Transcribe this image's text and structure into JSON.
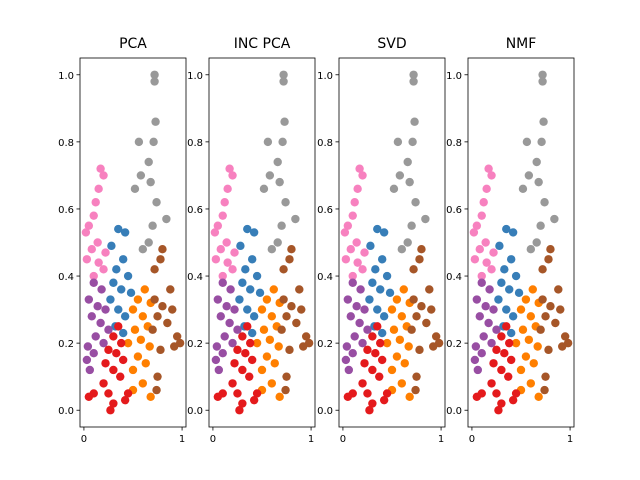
{
  "chart_data": [
    {
      "type": "scatter",
      "title": "PCA",
      "xlim": [
        -0.04,
        1.04
      ],
      "ylim": [
        -0.05,
        1.05
      ],
      "xticks": [
        0,
        1
      ],
      "yticks": [
        {
          "value": 0,
          "label": "0.0"
        },
        0.2,
        0.4,
        0.6,
        0.8,
        {
          "value": 1,
          "label": "1.0"
        }
      ],
      "series": [
        {
          "color": "#999999",
          "x": [
            0.72,
            0.72,
            0.73,
            0.56,
            0.71,
            0.66,
            0.58,
            0.68,
            0.52,
            0.74,
            0.7,
            0.84,
            0.66,
            0.6
          ],
          "y": [
            1.0,
            0.98,
            0.86,
            0.8,
            0.8,
            0.74,
            0.7,
            0.68,
            0.66,
            0.62,
            0.55,
            0.57,
            0.5,
            0.48
          ]
        },
        {
          "color": "#f781bf",
          "x": [
            0.17,
            0.2,
            0.15,
            0.12,
            0.1,
            0.05,
            0.02,
            0.14,
            0.08,
            0.03,
            0.15,
            0.2,
            0.1,
            0.22
          ],
          "y": [
            0.72,
            0.7,
            0.66,
            0.62,
            0.58,
            0.55,
            0.53,
            0.5,
            0.48,
            0.45,
            0.44,
            0.42,
            0.4,
            0.47
          ]
        },
        {
          "color": "#377eb8",
          "x": [
            0.35,
            0.42,
            0.28,
            0.4,
            0.33,
            0.45,
            0.3,
            0.38,
            0.48,
            0.27,
            0.35,
            0.42,
            0.32,
            0.4
          ],
          "y": [
            0.54,
            0.53,
            0.49,
            0.45,
            0.42,
            0.4,
            0.38,
            0.36,
            0.35,
            0.33,
            0.3,
            0.28,
            0.25,
            0.23
          ]
        },
        {
          "color": "#984ea3",
          "x": [
            0.1,
            0.18,
            0.05,
            0.14,
            0.22,
            0.08,
            0.17,
            0.25,
            0.12,
            0.04,
            0.2,
            0.1,
            0.03,
            0.06
          ],
          "y": [
            0.38,
            0.36,
            0.33,
            0.31,
            0.3,
            0.28,
            0.26,
            0.24,
            0.22,
            0.19,
            0.2,
            0.17,
            0.15,
            0.12
          ]
        },
        {
          "color": "#ff7f00",
          "x": [
            0.62,
            0.55,
            0.68,
            0.5,
            0.6,
            0.65,
            0.52,
            0.58,
            0.67,
            0.45,
            0.55,
            0.63,
            0.5,
            0.6,
            0.5,
            0.68
          ],
          "y": [
            0.36,
            0.33,
            0.32,
            0.3,
            0.28,
            0.25,
            0.24,
            0.21,
            0.19,
            0.2,
            0.16,
            0.14,
            0.12,
            0.08,
            0.06,
            0.04
          ]
        },
        {
          "color": "#a65628",
          "x": [
            0.8,
            0.78,
            0.72,
            0.88,
            0.72,
            0.8,
            0.9,
            0.75,
            0.85,
            0.7,
            0.95,
            0.92,
            0.98,
            0.78,
            0.75,
            0.74
          ],
          "y": [
            0.48,
            0.45,
            0.42,
            0.36,
            0.33,
            0.31,
            0.3,
            0.28,
            0.26,
            0.24,
            0.22,
            0.19,
            0.2,
            0.18,
            0.1,
            0.06
          ]
        },
        {
          "color": "#e41a1c",
          "x": [
            0.35,
            0.3,
            0.38,
            0.25,
            0.33,
            0.4,
            0.22,
            0.3,
            0.37,
            0.2,
            0.1,
            0.05,
            0.25,
            0.3,
            0.42,
            0.27,
            0.45
          ],
          "y": [
            0.25,
            0.22,
            0.2,
            0.18,
            0.17,
            0.15,
            0.14,
            0.12,
            0.1,
            0.08,
            0.05,
            0.04,
            0.05,
            0.02,
            0.03,
            0.0,
            0.05
          ]
        }
      ]
    },
    {
      "type": "scatter",
      "title": "INC PCA",
      "xlim": [
        -0.04,
        1.04
      ],
      "ylim": [
        -0.05,
        1.05
      ],
      "xticks": [
        0,
        1
      ],
      "yticks": [
        {
          "value": 0,
          "label": "0.0"
        },
        0.2,
        0.4,
        0.6,
        0.8,
        {
          "value": 1,
          "label": "1.0"
        }
      ],
      "series": [
        {
          "color": "#999999",
          "x": [
            0.72,
            0.72,
            0.73,
            0.56,
            0.71,
            0.66,
            0.58,
            0.68,
            0.52,
            0.74,
            0.7,
            0.84,
            0.66,
            0.6
          ],
          "y": [
            1.0,
            0.98,
            0.86,
            0.8,
            0.8,
            0.74,
            0.7,
            0.68,
            0.66,
            0.62,
            0.55,
            0.57,
            0.5,
            0.48
          ]
        },
        {
          "color": "#f781bf",
          "x": [
            0.17,
            0.2,
            0.15,
            0.12,
            0.1,
            0.05,
            0.02,
            0.14,
            0.08,
            0.03,
            0.15,
            0.2,
            0.1,
            0.22
          ],
          "y": [
            0.72,
            0.7,
            0.66,
            0.62,
            0.58,
            0.55,
            0.53,
            0.5,
            0.48,
            0.45,
            0.44,
            0.42,
            0.4,
            0.47
          ]
        },
        {
          "color": "#377eb8",
          "x": [
            0.35,
            0.42,
            0.28,
            0.4,
            0.33,
            0.45,
            0.3,
            0.38,
            0.48,
            0.27,
            0.35,
            0.42,
            0.32,
            0.4
          ],
          "y": [
            0.54,
            0.53,
            0.49,
            0.45,
            0.42,
            0.4,
            0.38,
            0.36,
            0.35,
            0.33,
            0.3,
            0.28,
            0.25,
            0.23
          ]
        },
        {
          "color": "#984ea3",
          "x": [
            0.1,
            0.18,
            0.05,
            0.14,
            0.22,
            0.08,
            0.17,
            0.25,
            0.12,
            0.04,
            0.2,
            0.1,
            0.03,
            0.06
          ],
          "y": [
            0.38,
            0.36,
            0.33,
            0.31,
            0.3,
            0.28,
            0.26,
            0.24,
            0.22,
            0.19,
            0.2,
            0.17,
            0.15,
            0.12
          ]
        },
        {
          "color": "#ff7f00",
          "x": [
            0.62,
            0.55,
            0.68,
            0.5,
            0.6,
            0.65,
            0.52,
            0.58,
            0.67,
            0.45,
            0.55,
            0.63,
            0.5,
            0.6,
            0.5,
            0.68
          ],
          "y": [
            0.36,
            0.33,
            0.32,
            0.3,
            0.28,
            0.25,
            0.24,
            0.21,
            0.19,
            0.2,
            0.16,
            0.14,
            0.12,
            0.08,
            0.06,
            0.04
          ]
        },
        {
          "color": "#a65628",
          "x": [
            0.8,
            0.78,
            0.72,
            0.88,
            0.72,
            0.8,
            0.9,
            0.75,
            0.85,
            0.7,
            0.95,
            0.92,
            0.98,
            0.78,
            0.75,
            0.74
          ],
          "y": [
            0.48,
            0.45,
            0.42,
            0.36,
            0.33,
            0.31,
            0.3,
            0.28,
            0.26,
            0.24,
            0.22,
            0.19,
            0.2,
            0.18,
            0.1,
            0.06
          ]
        },
        {
          "color": "#e41a1c",
          "x": [
            0.35,
            0.3,
            0.38,
            0.25,
            0.33,
            0.4,
            0.22,
            0.3,
            0.37,
            0.2,
            0.1,
            0.05,
            0.25,
            0.3,
            0.42,
            0.27,
            0.45
          ],
          "y": [
            0.25,
            0.22,
            0.2,
            0.18,
            0.17,
            0.15,
            0.14,
            0.12,
            0.1,
            0.08,
            0.05,
            0.04,
            0.05,
            0.02,
            0.03,
            0.0,
            0.05
          ]
        }
      ]
    },
    {
      "type": "scatter",
      "title": "SVD",
      "xlim": [
        -0.04,
        1.04
      ],
      "ylim": [
        -0.05,
        1.05
      ],
      "xticks": [
        0,
        1
      ],
      "yticks": [
        {
          "value": 0,
          "label": "0.0"
        },
        0.2,
        0.4,
        0.6,
        0.8,
        {
          "value": 1,
          "label": "1.0"
        }
      ],
      "series": [
        {
          "color": "#999999",
          "x": [
            0.72,
            0.72,
            0.73,
            0.56,
            0.71,
            0.66,
            0.58,
            0.68,
            0.52,
            0.74,
            0.7,
            0.84,
            0.66,
            0.6
          ],
          "y": [
            1.0,
            0.98,
            0.86,
            0.8,
            0.8,
            0.74,
            0.7,
            0.68,
            0.66,
            0.62,
            0.55,
            0.57,
            0.5,
            0.48
          ]
        },
        {
          "color": "#f781bf",
          "x": [
            0.17,
            0.2,
            0.15,
            0.12,
            0.1,
            0.05,
            0.02,
            0.14,
            0.08,
            0.03,
            0.15,
            0.2,
            0.1,
            0.22
          ],
          "y": [
            0.72,
            0.7,
            0.66,
            0.62,
            0.58,
            0.55,
            0.53,
            0.5,
            0.48,
            0.45,
            0.44,
            0.42,
            0.4,
            0.47
          ]
        },
        {
          "color": "#377eb8",
          "x": [
            0.35,
            0.42,
            0.28,
            0.4,
            0.33,
            0.45,
            0.3,
            0.38,
            0.48,
            0.27,
            0.35,
            0.42,
            0.32,
            0.4
          ],
          "y": [
            0.54,
            0.53,
            0.49,
            0.45,
            0.42,
            0.4,
            0.38,
            0.36,
            0.35,
            0.33,
            0.3,
            0.28,
            0.25,
            0.23
          ]
        },
        {
          "color": "#984ea3",
          "x": [
            0.1,
            0.18,
            0.05,
            0.14,
            0.22,
            0.08,
            0.17,
            0.25,
            0.12,
            0.04,
            0.2,
            0.1,
            0.03,
            0.06
          ],
          "y": [
            0.38,
            0.36,
            0.33,
            0.31,
            0.3,
            0.28,
            0.26,
            0.24,
            0.22,
            0.19,
            0.2,
            0.17,
            0.15,
            0.12
          ]
        },
        {
          "color": "#ff7f00",
          "x": [
            0.62,
            0.55,
            0.68,
            0.5,
            0.6,
            0.65,
            0.52,
            0.58,
            0.67,
            0.45,
            0.55,
            0.63,
            0.5,
            0.6,
            0.5,
            0.68
          ],
          "y": [
            0.36,
            0.33,
            0.32,
            0.3,
            0.28,
            0.25,
            0.24,
            0.21,
            0.19,
            0.2,
            0.16,
            0.14,
            0.12,
            0.08,
            0.06,
            0.04
          ]
        },
        {
          "color": "#a65628",
          "x": [
            0.8,
            0.78,
            0.72,
            0.88,
            0.72,
            0.8,
            0.9,
            0.75,
            0.85,
            0.7,
            0.95,
            0.92,
            0.98,
            0.78,
            0.75,
            0.74
          ],
          "y": [
            0.48,
            0.45,
            0.42,
            0.36,
            0.33,
            0.31,
            0.3,
            0.28,
            0.26,
            0.24,
            0.22,
            0.19,
            0.2,
            0.18,
            0.1,
            0.06
          ]
        },
        {
          "color": "#e41a1c",
          "x": [
            0.35,
            0.3,
            0.38,
            0.25,
            0.33,
            0.4,
            0.22,
            0.3,
            0.37,
            0.2,
            0.1,
            0.05,
            0.25,
            0.3,
            0.42,
            0.27,
            0.45
          ],
          "y": [
            0.25,
            0.22,
            0.2,
            0.18,
            0.17,
            0.15,
            0.14,
            0.12,
            0.1,
            0.08,
            0.05,
            0.04,
            0.05,
            0.02,
            0.03,
            0.0,
            0.05
          ]
        }
      ]
    },
    {
      "type": "scatter",
      "title": "NMF",
      "xlim": [
        -0.04,
        1.04
      ],
      "ylim": [
        -0.05,
        1.05
      ],
      "xticks": [
        0,
        1
      ],
      "yticks": [
        {
          "value": 0,
          "label": "0.0"
        },
        0.2,
        0.4,
        0.6,
        0.8,
        {
          "value": 1,
          "label": "1.0"
        }
      ],
      "series": [
        {
          "color": "#999999",
          "x": [
            0.72,
            0.72,
            0.73,
            0.56,
            0.71,
            0.66,
            0.58,
            0.68,
            0.52,
            0.74,
            0.7,
            0.84,
            0.66,
            0.6
          ],
          "y": [
            1.0,
            0.98,
            0.86,
            0.8,
            0.8,
            0.74,
            0.7,
            0.68,
            0.66,
            0.62,
            0.55,
            0.57,
            0.5,
            0.48
          ]
        },
        {
          "color": "#f781bf",
          "x": [
            0.17,
            0.2,
            0.15,
            0.12,
            0.1,
            0.05,
            0.02,
            0.14,
            0.08,
            0.03,
            0.15,
            0.2,
            0.1,
            0.22
          ],
          "y": [
            0.72,
            0.7,
            0.66,
            0.62,
            0.58,
            0.55,
            0.53,
            0.5,
            0.48,
            0.45,
            0.44,
            0.42,
            0.4,
            0.47
          ]
        },
        {
          "color": "#377eb8",
          "x": [
            0.35,
            0.42,
            0.28,
            0.4,
            0.33,
            0.45,
            0.3,
            0.38,
            0.48,
            0.27,
            0.35,
            0.42,
            0.32,
            0.4
          ],
          "y": [
            0.54,
            0.53,
            0.49,
            0.45,
            0.42,
            0.4,
            0.38,
            0.36,
            0.35,
            0.33,
            0.3,
            0.28,
            0.25,
            0.23
          ]
        },
        {
          "color": "#984ea3",
          "x": [
            0.1,
            0.18,
            0.05,
            0.14,
            0.22,
            0.08,
            0.17,
            0.25,
            0.12,
            0.04,
            0.2,
            0.1,
            0.03,
            0.06
          ],
          "y": [
            0.38,
            0.36,
            0.33,
            0.31,
            0.3,
            0.28,
            0.26,
            0.24,
            0.22,
            0.19,
            0.2,
            0.17,
            0.15,
            0.12
          ]
        },
        {
          "color": "#ff7f00",
          "x": [
            0.62,
            0.55,
            0.68,
            0.5,
            0.6,
            0.65,
            0.52,
            0.58,
            0.67,
            0.45,
            0.55,
            0.63,
            0.5,
            0.6,
            0.5,
            0.68
          ],
          "y": [
            0.36,
            0.33,
            0.32,
            0.3,
            0.28,
            0.25,
            0.24,
            0.21,
            0.19,
            0.2,
            0.16,
            0.14,
            0.12,
            0.08,
            0.06,
            0.04
          ]
        },
        {
          "color": "#a65628",
          "x": [
            0.8,
            0.78,
            0.72,
            0.88,
            0.72,
            0.8,
            0.9,
            0.75,
            0.85,
            0.7,
            0.95,
            0.92,
            0.98,
            0.78,
            0.75,
            0.74
          ],
          "y": [
            0.48,
            0.45,
            0.42,
            0.36,
            0.33,
            0.31,
            0.3,
            0.28,
            0.26,
            0.24,
            0.22,
            0.19,
            0.2,
            0.18,
            0.1,
            0.06
          ]
        },
        {
          "color": "#e41a1c",
          "x": [
            0.35,
            0.3,
            0.38,
            0.25,
            0.33,
            0.4,
            0.22,
            0.3,
            0.37,
            0.2,
            0.1,
            0.05,
            0.25,
            0.3,
            0.42,
            0.27,
            0.45
          ],
          "y": [
            0.25,
            0.22,
            0.2,
            0.18,
            0.17,
            0.15,
            0.14,
            0.12,
            0.1,
            0.08,
            0.05,
            0.04,
            0.05,
            0.02,
            0.03,
            0.0,
            0.05
          ]
        }
      ]
    }
  ]
}
